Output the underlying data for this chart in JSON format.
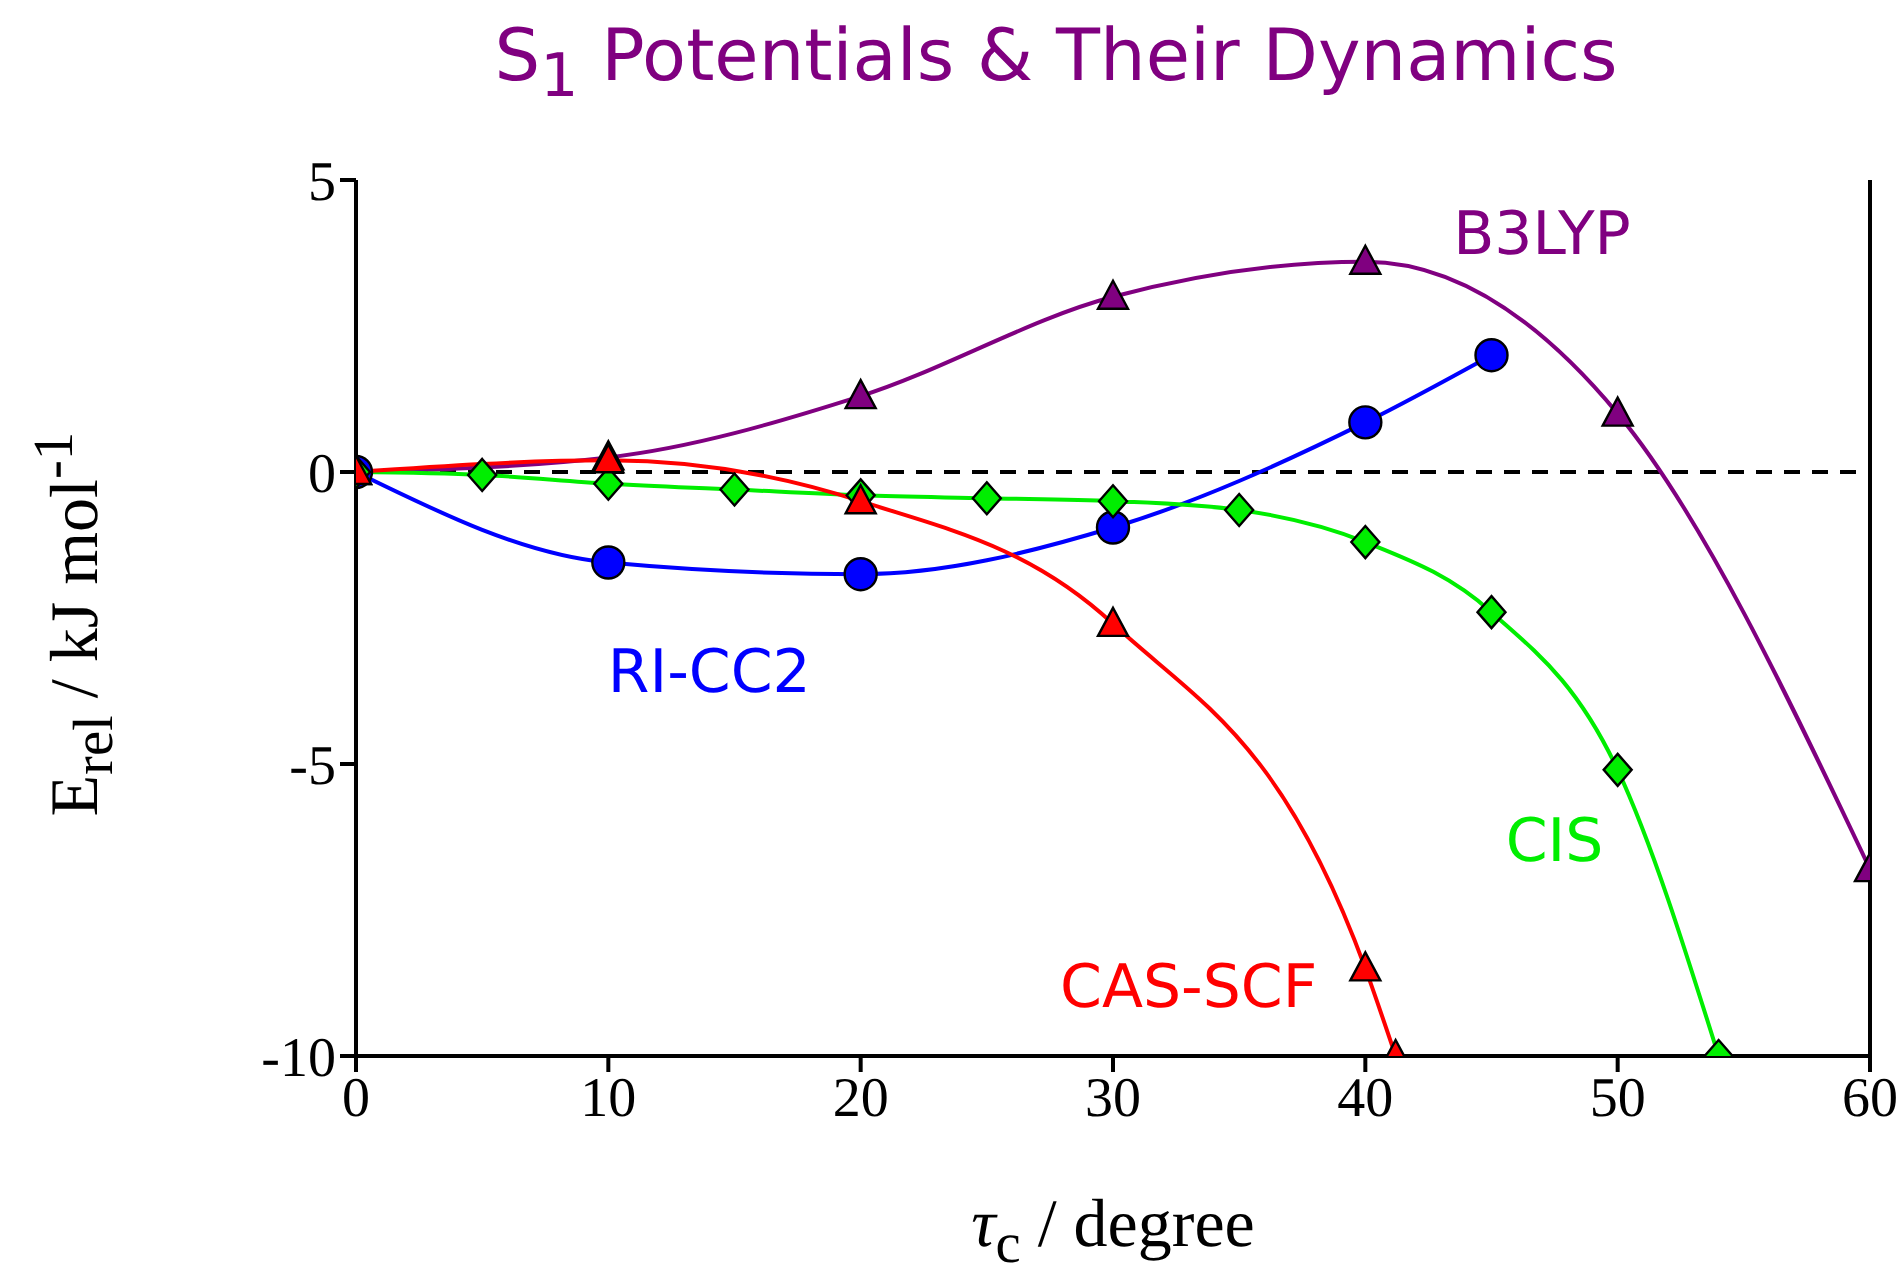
{
  "chart_data": {
    "type": "line",
    "title": "S$_{1}$ Potentials & Their Dynamics",
    "xlabel": "τ$_{c}$ / degree",
    "ylabel": "E$_{rel}$ / kJ mol$^{-1}$",
    "xlim": [
      0,
      60
    ],
    "xticks": [
      0,
      10,
      20,
      30,
      40,
      50,
      60
    ],
    "ylim": [
      -10,
      5
    ],
    "yticks": [
      -10,
      -5,
      0,
      5
    ],
    "ref_lines": [
      {
        "axis": "y",
        "value": 0,
        "line_style": "dashed",
        "color": "#000000"
      }
    ],
    "series": [
      {
        "name": "B3LYP",
        "color": "#800080",
        "marker": "triangle",
        "x": [
          0,
          10,
          20,
          30,
          40,
          50,
          60
        ],
        "values": [
          0,
          0.25,
          1.3,
          3.0,
          3.6,
          1.0,
          -6.8
        ]
      },
      {
        "name": "RI-CC2",
        "color": "#0000ff",
        "marker": "circle",
        "x": [
          0,
          10,
          20,
          30,
          40,
          45
        ],
        "values": [
          0,
          -1.55,
          -1.75,
          -0.95,
          0.85,
          2.0
        ]
      },
      {
        "name": "CIS",
        "color": "#00ee00",
        "marker": "diamond",
        "x": [
          0,
          5,
          10,
          15,
          20,
          25,
          30,
          35,
          40,
          45,
          50,
          54
        ],
        "values": [
          0,
          -0.05,
          -0.2,
          -0.3,
          -0.4,
          -0.45,
          -0.5,
          -0.65,
          -1.2,
          -2.4,
          -5.1,
          -10
        ]
      },
      {
        "name": "CAS-SCF",
        "color": "#ff0000",
        "marker": "triangle",
        "x": [
          0,
          10,
          20,
          30,
          40,
          41.2
        ],
        "values": [
          0,
          0.2,
          -0.5,
          -2.6,
          -8.5,
          -10
        ]
      }
    ]
  }
}
